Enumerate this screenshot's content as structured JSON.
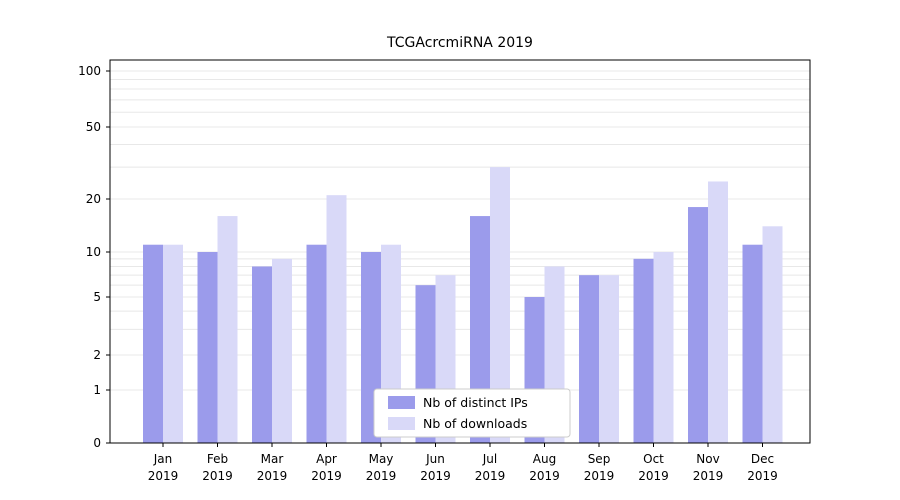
{
  "chart_data": {
    "type": "bar",
    "title": "TCGAcrcmiRNA 2019",
    "year": "2019",
    "categories": [
      "Jan",
      "Feb",
      "Mar",
      "Apr",
      "May",
      "Jun",
      "Jul",
      "Aug",
      "Sep",
      "Oct",
      "Nov",
      "Dec"
    ],
    "series": [
      {
        "name": "Nb of distinct IPs",
        "color": "#9b9beb",
        "values": [
          11,
          10,
          8,
          11,
          10,
          6,
          16,
          5,
          7,
          9,
          18,
          11
        ]
      },
      {
        "name": "Nb of downloads",
        "color": "#d9d9f8",
        "values": [
          11,
          16,
          9,
          21,
          11,
          7,
          30,
          8,
          7,
          10,
          25,
          14
        ]
      }
    ],
    "y_ticks": [
      0,
      1,
      2,
      5,
      10,
      20,
      50,
      100
    ],
    "ylim": [
      0,
      100
    ],
    "yscale": "symlog",
    "grid": "horizontal minor gridlines",
    "legend_position": "bottom-center",
    "xlabel": "",
    "ylabel": ""
  }
}
